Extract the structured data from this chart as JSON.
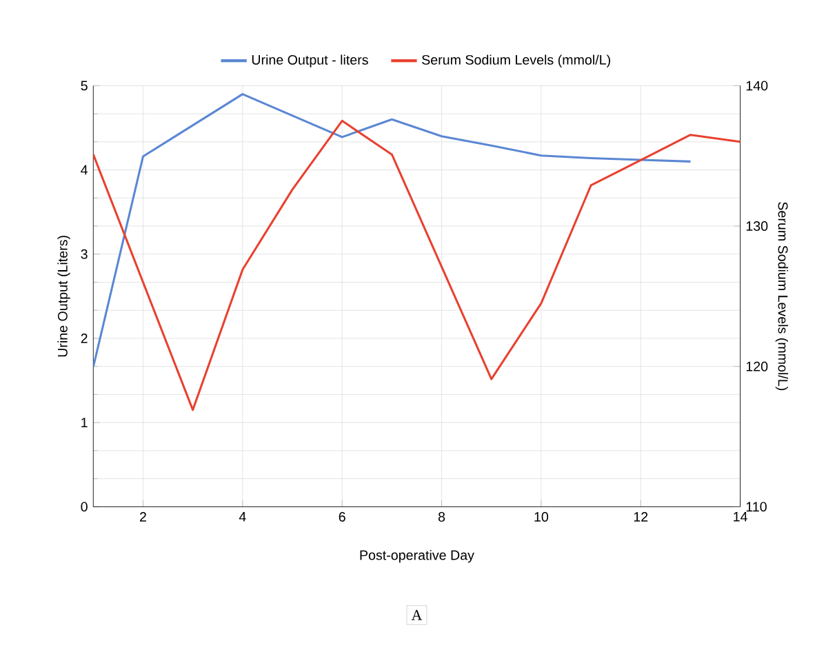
{
  "chart_data": {
    "type": "line",
    "xlabel": "Post-operative Day",
    "ylabel": "Urine Output (Liters)",
    "y2label": "Serum Sodium Levels (mmol/L)",
    "annotations": [
      "A"
    ],
    "series": [
      {
        "name": "Urine Output - liters",
        "color": "#5b87d4",
        "x": [
          1,
          2,
          4,
          6,
          7,
          8,
          9,
          10,
          11,
          12,
          13
        ],
        "values": [
          1.66,
          4.16,
          4.9,
          4.39,
          4.6,
          4.4,
          4.29,
          4.17,
          4.14,
          4.12,
          4.1
        ]
      },
      {
        "name": "Serum Sodium Levels (mmol/L)",
        "color": "#e8412f",
        "axis": "y2",
        "x": [
          1,
          3,
          4,
          5,
          6,
          7,
          9,
          10,
          11,
          12,
          13,
          14
        ],
        "values": [
          135.1,
          116.9,
          126.9,
          132.6,
          137.5,
          135.1,
          119.1,
          124.5,
          132.9,
          134.7,
          136.5,
          136.0
        ]
      }
    ],
    "xlim": [
      1,
      14
    ],
    "xticks": [
      2,
      4,
      6,
      8,
      10,
      12,
      14
    ],
    "ylim": [
      0,
      5
    ],
    "yticks": [
      0,
      1,
      2,
      3,
      4,
      5
    ],
    "y2lim": [
      110,
      140
    ],
    "y2ticks": [
      110,
      120,
      130,
      140
    ],
    "grid": true,
    "legend": "top",
    "marker": "none",
    "line_style": "solid"
  }
}
